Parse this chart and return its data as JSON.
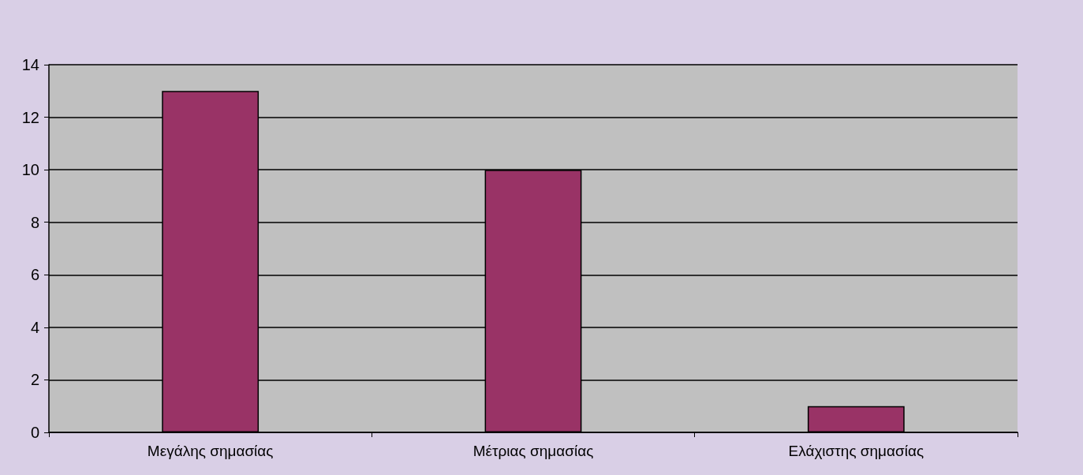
{
  "chart_data": {
    "type": "bar",
    "categories": [
      "Μεγάλης σημασίας",
      "Μέτριας σημασίας",
      "Ελάχιστης σημασίας"
    ],
    "values": [
      13,
      10,
      1
    ],
    "color": "#993366",
    "ylim": [
      0,
      14
    ],
    "yticks": [
      0,
      2,
      4,
      6,
      8,
      10,
      12,
      14
    ],
    "grid": true
  }
}
